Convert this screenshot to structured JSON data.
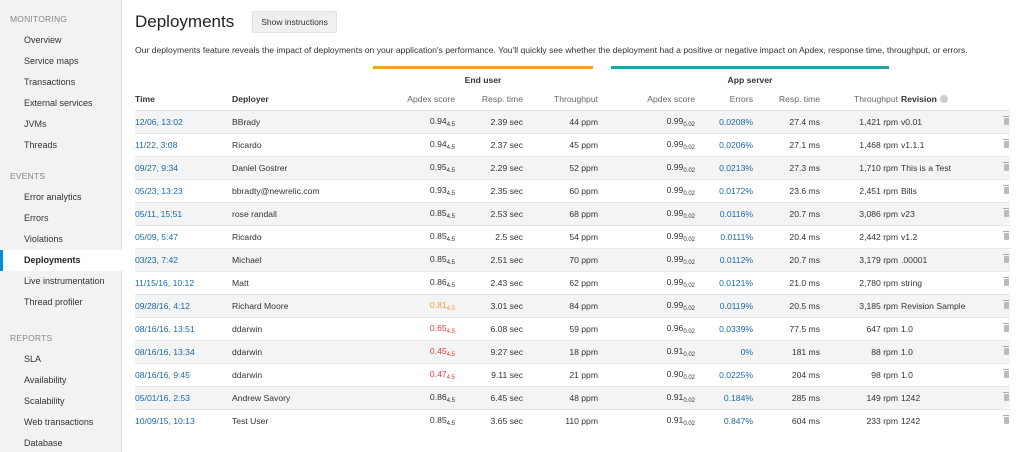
{
  "sidebar": {
    "sections": [
      {
        "title": "MONITORING",
        "items": [
          "Overview",
          "Service maps",
          "Transactions",
          "External services",
          "JVMs",
          "Threads"
        ]
      },
      {
        "title": "EVENTS",
        "items": [
          "Error analytics",
          "Errors",
          "Violations",
          "Deployments",
          "Live instrumentation",
          "Thread profiler"
        ]
      },
      {
        "title": "REPORTS",
        "items": [
          "SLA",
          "Availability",
          "Scalability",
          "Web transactions",
          "Database"
        ]
      }
    ],
    "active": "Deployments"
  },
  "header": {
    "title": "Deployments",
    "show_instructions": "Show instructions"
  },
  "description": "Our deployments feature reveals the impact of deployments on your application's performance. You'll quickly see whether the deployment had a positive or negative impact on Apdex, response time, throughput, or errors.",
  "groups": {
    "end_user": "End user",
    "app_server": "App server"
  },
  "columns": {
    "time": "Time",
    "deployer": "Deployer",
    "eu_apdex": "Apdex score",
    "eu_resp": "Resp. time",
    "eu_throughput": "Throughput",
    "as_apdex": "Apdex score",
    "as_errors": "Errors",
    "as_resp": "Resp. time",
    "as_throughput": "Throughput",
    "revision": "Revision"
  },
  "rows": [
    {
      "time": "12/06, 13:02",
      "deployer": "BBrady",
      "eu_apdex": "0.94",
      "eu_t": "4.5",
      "eu_color": "normal",
      "eu_resp": "2.39 sec",
      "eu_tp": "44 ppm",
      "as_apdex": "0.99",
      "as_t": "0.02",
      "errors": "0.0208%",
      "as_resp": "27.4 ms",
      "as_tp": "1,421 rpm",
      "revision": "v0.01"
    },
    {
      "time": "11/22, 3:08",
      "deployer": "Ricardo",
      "eu_apdex": "0.94",
      "eu_t": "4.5",
      "eu_color": "normal",
      "eu_resp": "2.37 sec",
      "eu_tp": "45 ppm",
      "as_apdex": "0.99",
      "as_t": "0.02",
      "errors": "0.0206%",
      "as_resp": "27.1 ms",
      "as_tp": "1,468 rpm",
      "revision": "v1.1.1"
    },
    {
      "time": "09/27, 9:34",
      "deployer": "Daniel Gostrer",
      "eu_apdex": "0.95",
      "eu_t": "4.5",
      "eu_color": "normal",
      "eu_resp": "2.29 sec",
      "eu_tp": "52 ppm",
      "as_apdex": "0.99",
      "as_t": "0.02",
      "errors": "0.0213%",
      "as_resp": "27.3 ms",
      "as_tp": "1,710 rpm",
      "revision": "This is a Test"
    },
    {
      "time": "05/23, 13:23",
      "deployer": "bbradty@newrelic.com",
      "eu_apdex": "0.93",
      "eu_t": "4.5",
      "eu_color": "normal",
      "eu_resp": "2.35 sec",
      "eu_tp": "60 ppm",
      "as_apdex": "0.99",
      "as_t": "0.02",
      "errors": "0.0172%",
      "as_resp": "23.6 ms",
      "as_tp": "2,451 rpm",
      "revision": "Bills"
    },
    {
      "time": "05/11, 15:51",
      "deployer": "rose randall",
      "eu_apdex": "0.85",
      "eu_t": "4.5",
      "eu_color": "normal",
      "eu_resp": "2.53 sec",
      "eu_tp": "68 ppm",
      "as_apdex": "0.99",
      "as_t": "0.02",
      "errors": "0.0116%",
      "as_resp": "20.7 ms",
      "as_tp": "3,086 rpm",
      "revision": "v23"
    },
    {
      "time": "05/09, 5:47",
      "deployer": "Ricardo",
      "eu_apdex": "0.85",
      "eu_t": "4.5",
      "eu_color": "normal",
      "eu_resp": "2.5 sec",
      "eu_tp": "54 ppm",
      "as_apdex": "0.99",
      "as_t": "0.02",
      "errors": "0.0111%",
      "as_resp": "20.4 ms",
      "as_tp": "2,442 rpm",
      "revision": "v1.2"
    },
    {
      "time": "03/23, 7:42",
      "deployer": "Michael",
      "eu_apdex": "0.85",
      "eu_t": "4.5",
      "eu_color": "normal",
      "eu_resp": "2.51 sec",
      "eu_tp": "70 ppm",
      "as_apdex": "0.99",
      "as_t": "0.02",
      "errors": "0.0112%",
      "as_resp": "20.7 ms",
      "as_tp": "3,179 rpm",
      "revision": ".00001"
    },
    {
      "time": "11/15/16, 10:12",
      "deployer": "Matt",
      "eu_apdex": "0.86",
      "eu_t": "4.5",
      "eu_color": "normal",
      "eu_resp": "2.43 sec",
      "eu_tp": "62 ppm",
      "as_apdex": "0.99",
      "as_t": "0.02",
      "errors": "0.0121%",
      "as_resp": "21.0 ms",
      "as_tp": "2,780 rpm",
      "revision": "string"
    },
    {
      "time": "09/28/16, 4:12",
      "deployer": "Richard Moore",
      "eu_apdex": "0.81",
      "eu_t": "4.5",
      "eu_color": "orange",
      "eu_resp": "3.01 sec",
      "eu_tp": "84 ppm",
      "as_apdex": "0.99",
      "as_t": "0.02",
      "errors": "0.0119%",
      "as_resp": "20.5 ms",
      "as_tp": "3,185 rpm",
      "revision": "Revision Sample"
    },
    {
      "time": "08/16/16, 13:51",
      "deployer": "ddarwin",
      "eu_apdex": "0.65",
      "eu_t": "4.5",
      "eu_color": "red",
      "eu_resp": "6.08 sec",
      "eu_tp": "59 ppm",
      "as_apdex": "0.96",
      "as_t": "0.02",
      "errors": "0.0339%",
      "as_resp": "77.5 ms",
      "as_tp": "647 rpm",
      "revision": "1.0"
    },
    {
      "time": "08/16/16, 13:34",
      "deployer": "ddarwin",
      "eu_apdex": "0.45",
      "eu_t": "4.5",
      "eu_color": "red",
      "eu_resp": "9.27 sec",
      "eu_tp": "18 ppm",
      "as_apdex": "0.91",
      "as_t": "0.02",
      "errors": "0%",
      "as_resp": "181 ms",
      "as_tp": "88 rpm",
      "revision": "1.0"
    },
    {
      "time": "08/16/16, 9:45",
      "deployer": "ddarwin",
      "eu_apdex": "0.47",
      "eu_t": "4.5",
      "eu_color": "red",
      "eu_resp": "9.11 sec",
      "eu_tp": "21 ppm",
      "as_apdex": "0.90",
      "as_t": "0.02",
      "errors": "0.0225%",
      "as_resp": "204 ms",
      "as_tp": "98 rpm",
      "revision": "1.0"
    },
    {
      "time": "05/01/16, 2:53",
      "deployer": "Andrew Savory",
      "eu_apdex": "0.86",
      "eu_t": "4.5",
      "eu_color": "normal",
      "eu_resp": "6.45 sec",
      "eu_tp": "48 ppm",
      "as_apdex": "0.91",
      "as_t": "0.02",
      "errors": "0.184%",
      "as_resp": "285 ms",
      "as_tp": "149 rpm",
      "revision": "1242"
    },
    {
      "time": "10/09/15, 10:13",
      "deployer": "Test User",
      "eu_apdex": "0.85",
      "eu_t": "4.5",
      "eu_color": "normal",
      "eu_resp": "3.65 sec",
      "eu_tp": "110 ppm",
      "as_apdex": "0.91",
      "as_t": "0.02",
      "errors": "0.847%",
      "as_resp": "604 ms",
      "as_tp": "233 rpm",
      "revision": "1242"
    }
  ],
  "icons": {
    "delete": "trash-icon",
    "revision_info": "info-icon"
  },
  "colors": {
    "accent": "#0b8ecb",
    "link": "#1a69a8",
    "end_user_bar": "#f0a030",
    "app_server_bar": "#2a9fa6",
    "apdex_warn": "#f0a030",
    "apdex_bad": "#e0403c"
  }
}
